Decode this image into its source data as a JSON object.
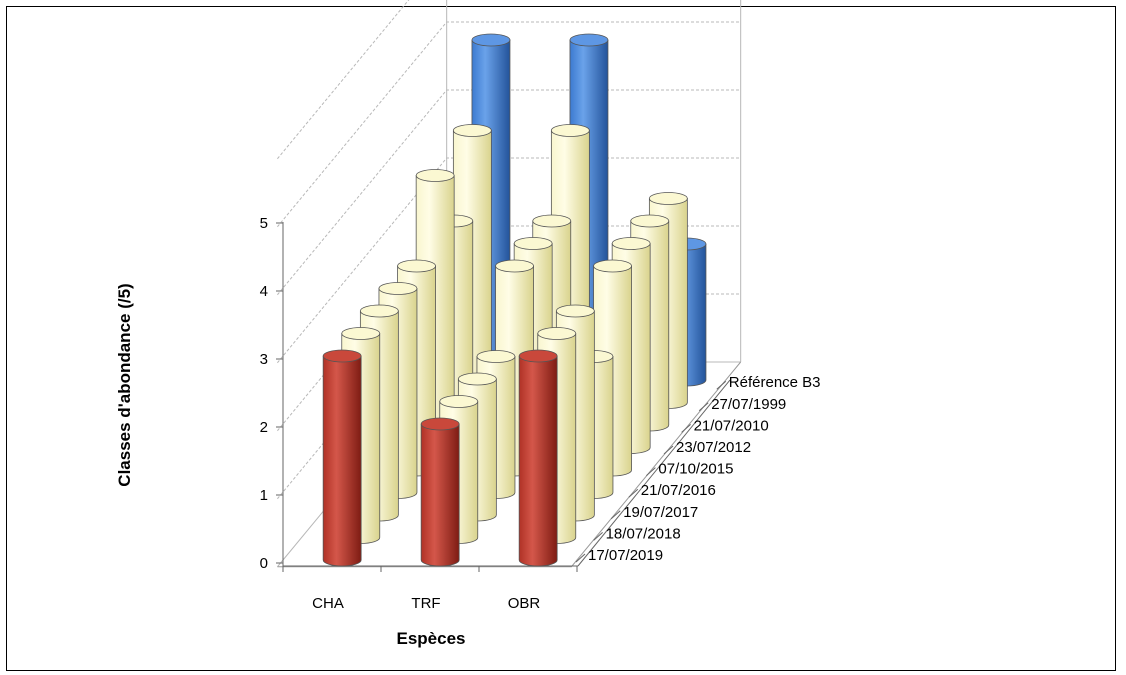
{
  "chart_data": {
    "type": "bar",
    "subtype": "3d-cylinder-grid",
    "xlabel": "Espèces",
    "ylabel": "Classes d'abondance  (/5)",
    "categories": [
      "CHA",
      "TRF",
      "OBR"
    ],
    "yticks": [
      "0",
      "1",
      "2",
      "3",
      "4",
      "5"
    ],
    "ylim": [
      0,
      5
    ],
    "grid": true,
    "series": [
      {
        "name": "Référence B3",
        "values": [
          5,
          5,
          2
        ],
        "color": "#3f7fd6"
      },
      {
        "name": "27/07/1999",
        "values": [
          4,
          4,
          3
        ],
        "color": "#f6f2b8"
      },
      {
        "name": "21/07/2010",
        "values": [
          3,
          3,
          3
        ],
        "color": "#f6f2b8"
      },
      {
        "name": "23/07/2012",
        "values": [
          4,
          3,
          3
        ],
        "color": "#f6f2b8"
      },
      {
        "name": "07/10/2015",
        "values": [
          3,
          3,
          3
        ],
        "color": "#f6f2b8"
      },
      {
        "name": "21/07/2016",
        "values": [
          3,
          2,
          2
        ],
        "color": "#f6f2b8"
      },
      {
        "name": "19/07/2017",
        "values": [
          3,
          2,
          3
        ],
        "color": "#f6f2b8"
      },
      {
        "name": "18/07/2018",
        "values": [
          3,
          2,
          3
        ],
        "color": "#f6f2b8"
      },
      {
        "name": "17/07/2019",
        "values": [
          3,
          2,
          3
        ],
        "color": "#c0392b"
      }
    ]
  }
}
